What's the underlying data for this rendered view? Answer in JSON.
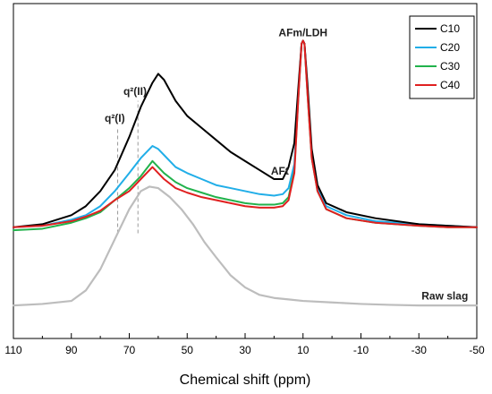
{
  "chart_data": {
    "type": "line",
    "title": "",
    "xlabel": "Chemical shift (ppm)",
    "ylabel": "",
    "xlim": [
      110,
      -50
    ],
    "ylim": [
      0,
      1
    ],
    "x_reversed": true,
    "x_ticks": [
      "110",
      "90",
      "70",
      "50",
      "30",
      "10",
      "-10",
      "-30",
      "-50"
    ],
    "grid": false,
    "legend_position": "top-right",
    "annotations": [
      {
        "text": "AFm/LDH",
        "x": 10,
        "y": 0.975
      },
      {
        "text": "AFt",
        "x": 18,
        "y": 0.515
      },
      {
        "text": "q²(II)",
        "x": 68,
        "y": 0.78
      },
      {
        "text": "q²(I)",
        "x": 75,
        "y": 0.69
      },
      {
        "text": "Raw slag",
        "x": -47,
        "y": 0.1
      }
    ],
    "reference_lines": [
      {
        "label": "q²(I)",
        "x": 74
      },
      {
        "label": "q²(II)",
        "x": 67
      }
    ],
    "series": [
      {
        "name": "C10",
        "color": "#000000",
        "points": [
          [
            110,
            0.34
          ],
          [
            100,
            0.35
          ],
          [
            90,
            0.38
          ],
          [
            85,
            0.41
          ],
          [
            80,
            0.46
          ],
          [
            75,
            0.53
          ],
          [
            70,
            0.64
          ],
          [
            66,
            0.74
          ],
          [
            62,
            0.82
          ],
          [
            60,
            0.85
          ],
          [
            58,
            0.83
          ],
          [
            54,
            0.76
          ],
          [
            50,
            0.71
          ],
          [
            45,
            0.67
          ],
          [
            40,
            0.63
          ],
          [
            35,
            0.59
          ],
          [
            30,
            0.56
          ],
          [
            25,
            0.53
          ],
          [
            20,
            0.5
          ],
          [
            17,
            0.5
          ],
          [
            15,
            0.54
          ],
          [
            13,
            0.62
          ],
          [
            11.5,
            0.82
          ],
          [
            10.5,
            0.95
          ],
          [
            10,
            0.96
          ],
          [
            9.5,
            0.95
          ],
          [
            8.5,
            0.82
          ],
          [
            7,
            0.6
          ],
          [
            5,
            0.48
          ],
          [
            2,
            0.42
          ],
          [
            -5,
            0.39
          ],
          [
            -15,
            0.37
          ],
          [
            -30,
            0.35
          ],
          [
            -40,
            0.345
          ],
          [
            -50,
            0.34
          ]
        ]
      },
      {
        "name": "C20",
        "color": "#21aee8",
        "points": [
          [
            110,
            0.34
          ],
          [
            100,
            0.345
          ],
          [
            90,
            0.365
          ],
          [
            85,
            0.38
          ],
          [
            80,
            0.41
          ],
          [
            75,
            0.46
          ],
          [
            70,
            0.52
          ],
          [
            66,
            0.57
          ],
          [
            62,
            0.61
          ],
          [
            60,
            0.6
          ],
          [
            58,
            0.58
          ],
          [
            54,
            0.54
          ],
          [
            50,
            0.52
          ],
          [
            45,
            0.5
          ],
          [
            40,
            0.48
          ],
          [
            35,
            0.47
          ],
          [
            30,
            0.46
          ],
          [
            25,
            0.45
          ],
          [
            20,
            0.445
          ],
          [
            17,
            0.45
          ],
          [
            15,
            0.47
          ],
          [
            13,
            0.55
          ],
          [
            11.5,
            0.8
          ],
          [
            10.5,
            0.95
          ],
          [
            10,
            0.96
          ],
          [
            9.5,
            0.95
          ],
          [
            8.5,
            0.8
          ],
          [
            7,
            0.58
          ],
          [
            5,
            0.47
          ],
          [
            2,
            0.41
          ],
          [
            -5,
            0.38
          ],
          [
            -15,
            0.36
          ],
          [
            -30,
            0.35
          ],
          [
            -40,
            0.345
          ],
          [
            -50,
            0.34
          ]
        ]
      },
      {
        "name": "C30",
        "color": "#22b24c",
        "points": [
          [
            110,
            0.33
          ],
          [
            100,
            0.335
          ],
          [
            90,
            0.355
          ],
          [
            85,
            0.37
          ],
          [
            80,
            0.39
          ],
          [
            75,
            0.43
          ],
          [
            70,
            0.47
          ],
          [
            66,
            0.51
          ],
          [
            62,
            0.56
          ],
          [
            60,
            0.54
          ],
          [
            58,
            0.52
          ],
          [
            54,
            0.49
          ],
          [
            50,
            0.47
          ],
          [
            45,
            0.455
          ],
          [
            40,
            0.44
          ],
          [
            35,
            0.43
          ],
          [
            30,
            0.42
          ],
          [
            25,
            0.415
          ],
          [
            20,
            0.415
          ],
          [
            17,
            0.42
          ],
          [
            15,
            0.44
          ],
          [
            13,
            0.53
          ],
          [
            11.5,
            0.79
          ],
          [
            10.5,
            0.95
          ],
          [
            10,
            0.96
          ],
          [
            9.5,
            0.95
          ],
          [
            8.5,
            0.79
          ],
          [
            7,
            0.57
          ],
          [
            5,
            0.46
          ],
          [
            2,
            0.4
          ],
          [
            -5,
            0.37
          ],
          [
            -15,
            0.355
          ],
          [
            -30,
            0.345
          ],
          [
            -40,
            0.34
          ],
          [
            -50,
            0.34
          ]
        ]
      },
      {
        "name": "C40",
        "color": "#e02020",
        "points": [
          [
            110,
            0.34
          ],
          [
            100,
            0.345
          ],
          [
            90,
            0.36
          ],
          [
            85,
            0.375
          ],
          [
            80,
            0.395
          ],
          [
            75,
            0.43
          ],
          [
            70,
            0.46
          ],
          [
            66,
            0.5
          ],
          [
            62,
            0.54
          ],
          [
            60,
            0.52
          ],
          [
            58,
            0.5
          ],
          [
            54,
            0.47
          ],
          [
            50,
            0.455
          ],
          [
            45,
            0.44
          ],
          [
            40,
            0.43
          ],
          [
            35,
            0.42
          ],
          [
            30,
            0.41
          ],
          [
            25,
            0.405
          ],
          [
            20,
            0.405
          ],
          [
            17,
            0.41
          ],
          [
            15,
            0.43
          ],
          [
            13,
            0.52
          ],
          [
            11.5,
            0.79
          ],
          [
            10.5,
            0.95
          ],
          [
            10,
            0.96
          ],
          [
            9.5,
            0.95
          ],
          [
            8.5,
            0.79
          ],
          [
            7,
            0.57
          ],
          [
            5,
            0.46
          ],
          [
            2,
            0.4
          ],
          [
            -5,
            0.37
          ],
          [
            -15,
            0.355
          ],
          [
            -30,
            0.345
          ],
          [
            -40,
            0.34
          ],
          [
            -50,
            0.34
          ]
        ]
      },
      {
        "name": "Raw slag",
        "color": "#bdbdbd",
        "points": [
          [
            110,
            0.08
          ],
          [
            100,
            0.085
          ],
          [
            90,
            0.095
          ],
          [
            85,
            0.13
          ],
          [
            80,
            0.2
          ],
          [
            75,
            0.3
          ],
          [
            70,
            0.4
          ],
          [
            66,
            0.46
          ],
          [
            63,
            0.475
          ],
          [
            60,
            0.47
          ],
          [
            56,
            0.44
          ],
          [
            52,
            0.4
          ],
          [
            48,
            0.35
          ],
          [
            44,
            0.29
          ],
          [
            40,
            0.24
          ],
          [
            35,
            0.18
          ],
          [
            30,
            0.14
          ],
          [
            25,
            0.115
          ],
          [
            20,
            0.105
          ],
          [
            15,
            0.1
          ],
          [
            10,
            0.095
          ],
          [
            0,
            0.09
          ],
          [
            -10,
            0.085
          ],
          [
            -20,
            0.082
          ],
          [
            -30,
            0.08
          ],
          [
            -40,
            0.08
          ],
          [
            -50,
            0.08
          ]
        ]
      }
    ]
  }
}
